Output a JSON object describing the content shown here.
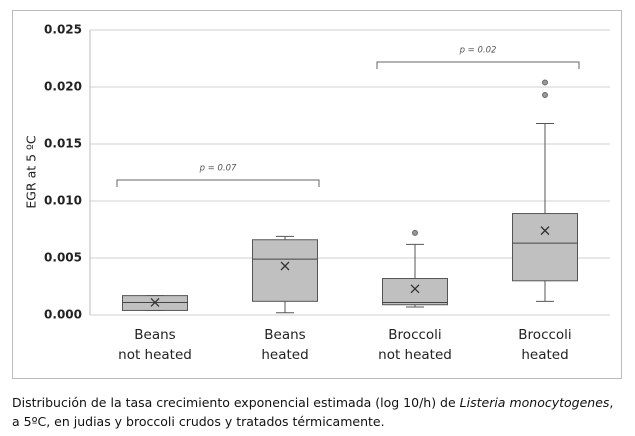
{
  "chart_data": {
    "type": "box",
    "y_label": "EGR at 5 ºC",
    "categories": [
      [
        "Beans",
        "not heated"
      ],
      [
        "Beans",
        "heated"
      ],
      [
        "Broccoli",
        "not heated"
      ],
      [
        "Broccoli",
        "heated"
      ]
    ],
    "boxes": [
      {
        "min": 0.0004,
        "q1": 0.0004,
        "median": 0.0011,
        "q3": 0.0017,
        "max": 0.0017,
        "mean": 0.0011,
        "outliers": []
      },
      {
        "min": 0.0002,
        "q1": 0.0012,
        "median": 0.0049,
        "q3": 0.0066,
        "max": 0.0069,
        "mean": 0.0043,
        "outliers": []
      },
      {
        "min": 0.0007,
        "q1": 0.0009,
        "median": 0.0011,
        "q3": 0.0032,
        "max": 0.0062,
        "mean": 0.0023,
        "outliers": [
          0.0072
        ]
      },
      {
        "min": 0.0012,
        "q1": 0.003,
        "median": 0.0063,
        "q3": 0.0089,
        "max": 0.0168,
        "mean": 0.0074,
        "outliers": [
          0.0193,
          0.0204
        ]
      }
    ],
    "color": "#c0c0c0",
    "annotations": [
      "p = 0.07",
      "p = 0.02"
    ],
    "ylim": [
      0,
      0.025
    ],
    "yticks": [
      {
        "value": 0,
        "label": "0.000"
      },
      {
        "value": 0.005,
        "label": "0.005"
      },
      {
        "value": 0.01,
        "label": "0.010"
      },
      {
        "value": 0.015,
        "label": "0.015"
      },
      {
        "value": 0.02,
        "label": "0.020"
      },
      0.025
    ],
    "grid": true
  },
  "caption": {
    "line1": [
      "Distribución de la tasa crecimiento exponencial estimada  (log 10/h) de ",
      "Listeria monocytogenes",
      ","
    ],
    "line2": "a 5ºC,  en judias y broccoli crudos y tratados térmicamente."
  }
}
